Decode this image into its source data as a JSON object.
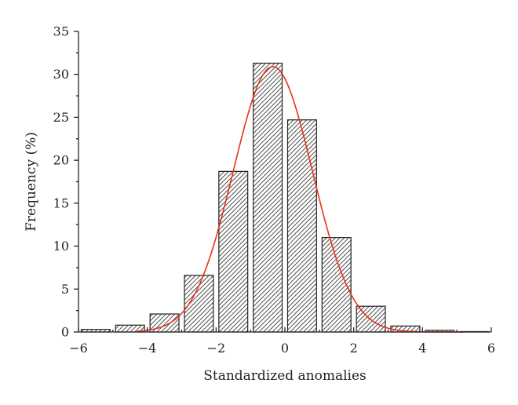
{
  "chart_data": {
    "type": "bar",
    "xlabel": "Standardized anomalies",
    "ylabel": "Frequency (%)",
    "xlim": [
      -6,
      6
    ],
    "ylim": [
      0,
      35
    ],
    "xticks": [
      -6,
      -4,
      -2,
      0,
      2,
      4,
      6
    ],
    "yticks": [
      0,
      5,
      10,
      15,
      20,
      25,
      30,
      35
    ],
    "xtick_labels": [
      "−6",
      "−4",
      "−2",
      "0",
      "2",
      "4",
      "6"
    ],
    "ytick_labels": [
      "0",
      "5",
      "10",
      "15",
      "20",
      "25",
      "30",
      "35"
    ],
    "bin_width": 1,
    "bins": [
      {
        "center": -5.5,
        "value": 0.3
      },
      {
        "center": -4.5,
        "value": 0.8
      },
      {
        "center": -3.5,
        "value": 2.1
      },
      {
        "center": -2.5,
        "value": 6.6
      },
      {
        "center": -1.5,
        "value": 18.7
      },
      {
        "center": -0.5,
        "value": 31.3
      },
      {
        "center": 0.5,
        "value": 24.7
      },
      {
        "center": 1.5,
        "value": 11.0
      },
      {
        "center": 2.5,
        "value": 3.0
      },
      {
        "center": 3.5,
        "value": 0.7
      },
      {
        "center": 4.5,
        "value": 0.2
      },
      {
        "center": 5.5,
        "value": 0.05
      }
    ],
    "fit_curve": {
      "type": "normal",
      "peak": 30.9,
      "mean": -0.35,
      "sd": 1.15,
      "color": "#e8321e"
    },
    "bar_fill": "hatched",
    "grid": false,
    "legend": "none"
  }
}
